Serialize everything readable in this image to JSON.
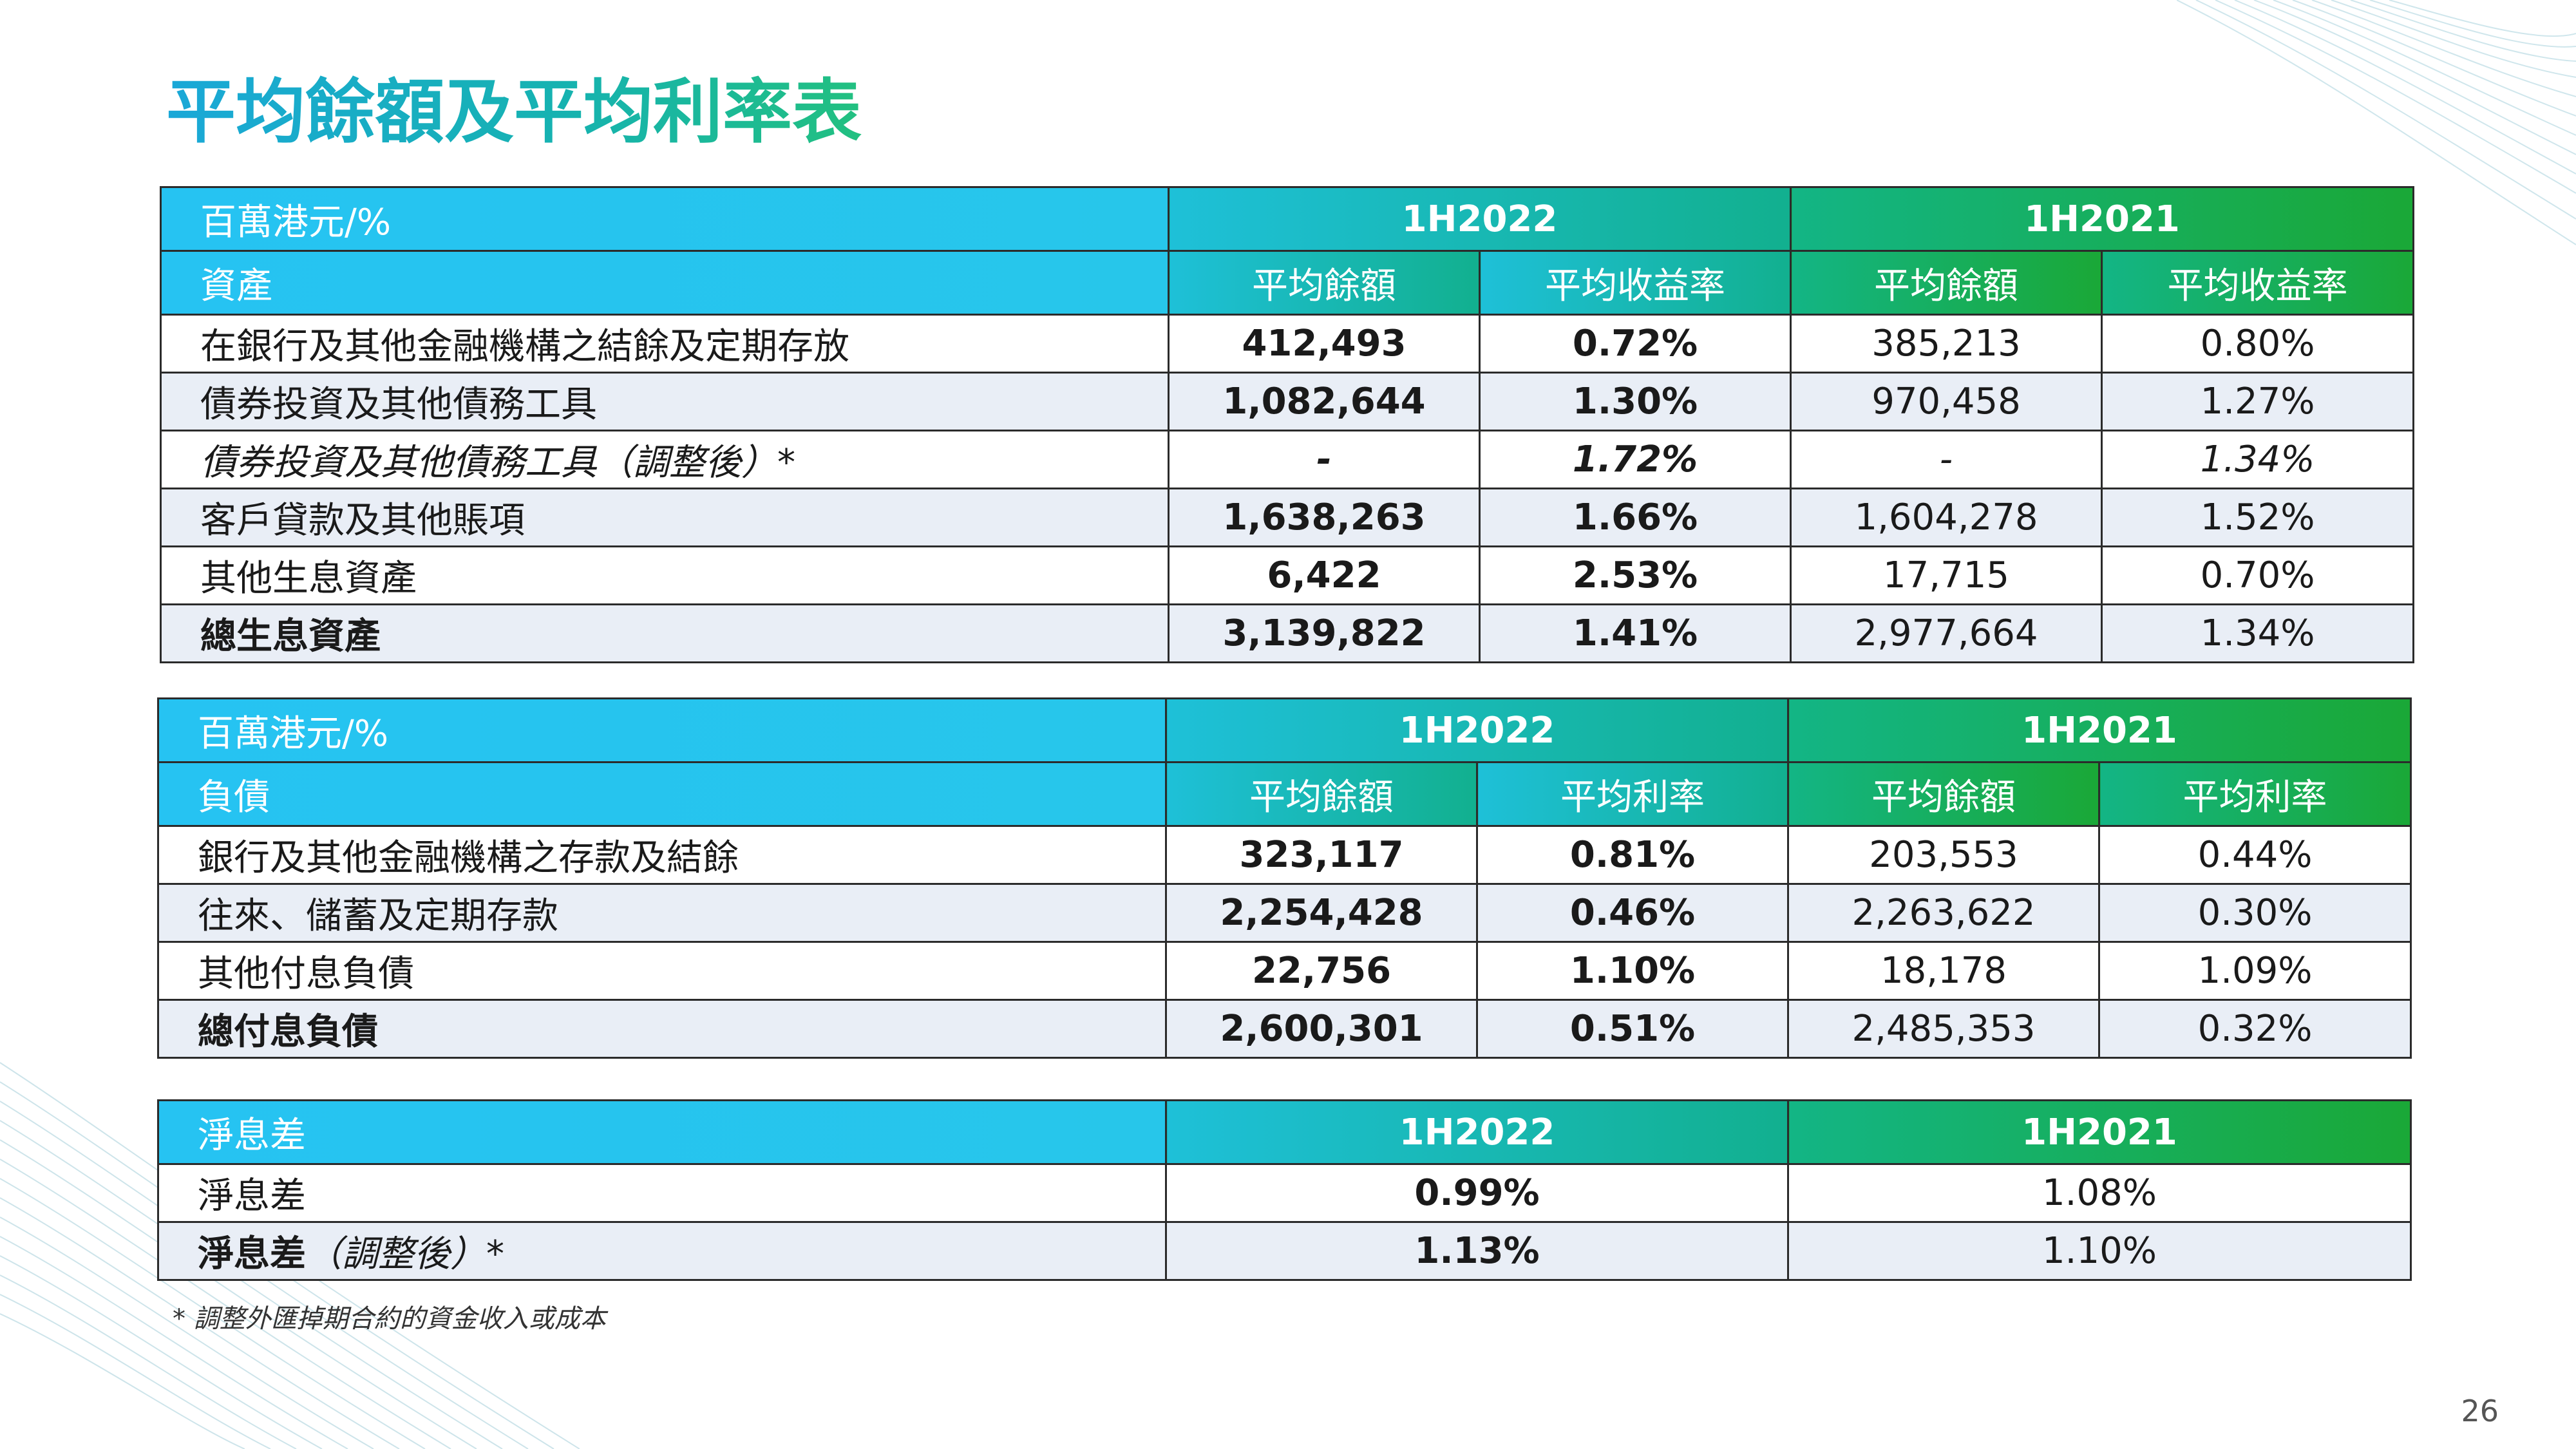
{
  "title": "平均餘額及平均利率表",
  "colors": {
    "header_cyan": "#26c3f2",
    "header_teal": "#12b08f",
    "header_green": "#1aa837",
    "row_shade": "#e9eef6"
  },
  "assets_table": {
    "unit_label": "百萬港元/%",
    "period_2022": "1H2022",
    "period_2021": "1H2021",
    "section_label": "資產",
    "col_avg_balance": "平均餘額",
    "col_avg_yield": "平均收益率",
    "rows": [
      {
        "label": "在銀行及其他金融機構之結餘及定期存放",
        "bal_2022": "412,493",
        "rate_2022": "0.72%",
        "bal_2021": "385,213",
        "rate_2021": "0.80%"
      },
      {
        "label": "債券投資及其他債務工具",
        "bal_2022": "1,082,644",
        "rate_2022": "1.30%",
        "bal_2021": "970,458",
        "rate_2021": "1.27%"
      },
      {
        "label": "債券投資及其他債務工具（調整後）*",
        "bal_2022": "-",
        "rate_2022": "1.72%",
        "bal_2021": "-",
        "rate_2021": "1.34%"
      },
      {
        "label": "客戶貸款及其他賬項",
        "bal_2022": "1,638,263",
        "rate_2022": "1.66%",
        "bal_2021": "1,604,278",
        "rate_2021": "1.52%"
      },
      {
        "label": "其他生息資產",
        "bal_2022": "6,422",
        "rate_2022": "2.53%",
        "bal_2021": "17,715",
        "rate_2021": "0.70%"
      },
      {
        "label": "總生息資產",
        "bal_2022": "3,139,822",
        "rate_2022": "1.41%",
        "bal_2021": "2,977,664",
        "rate_2021": "1.34%"
      }
    ]
  },
  "liabilities_table": {
    "unit_label": "百萬港元/%",
    "period_2022": "1H2022",
    "period_2021": "1H2021",
    "section_label": "負債",
    "col_avg_balance": "平均餘額",
    "col_avg_rate": "平均利率",
    "rows": [
      {
        "label": "銀行及其他金融機構之存款及結餘",
        "bal_2022": "323,117",
        "rate_2022": "0.81%",
        "bal_2021": "203,553",
        "rate_2021": "0.44%"
      },
      {
        "label": "往來、儲蓄及定期存款",
        "bal_2022": "2,254,428",
        "rate_2022": "0.46%",
        "bal_2021": "2,263,622",
        "rate_2021": "0.30%"
      },
      {
        "label": "其他付息負債",
        "bal_2022": "22,756",
        "rate_2022": "1.10%",
        "bal_2021": "18,178",
        "rate_2021": "1.09%"
      },
      {
        "label": "總付息負債",
        "bal_2022": "2,600,301",
        "rate_2022": "0.51%",
        "bal_2021": "2,485,353",
        "rate_2021": "0.32%"
      }
    ]
  },
  "nim_table": {
    "header_label": "淨息差",
    "period_2022": "1H2022",
    "period_2021": "1H2021",
    "rows": [
      {
        "label": "淨息差",
        "value_2022": "0.99%",
        "value_2021": "1.08%"
      },
      {
        "label_main": "淨息差",
        "label_suffix": "（調整後）*",
        "value_2022": "1.13%",
        "value_2021": "1.10%"
      }
    ]
  },
  "footnote": "* 調整外匯掉期合約的資金收入或成本",
  "page_number": "26"
}
